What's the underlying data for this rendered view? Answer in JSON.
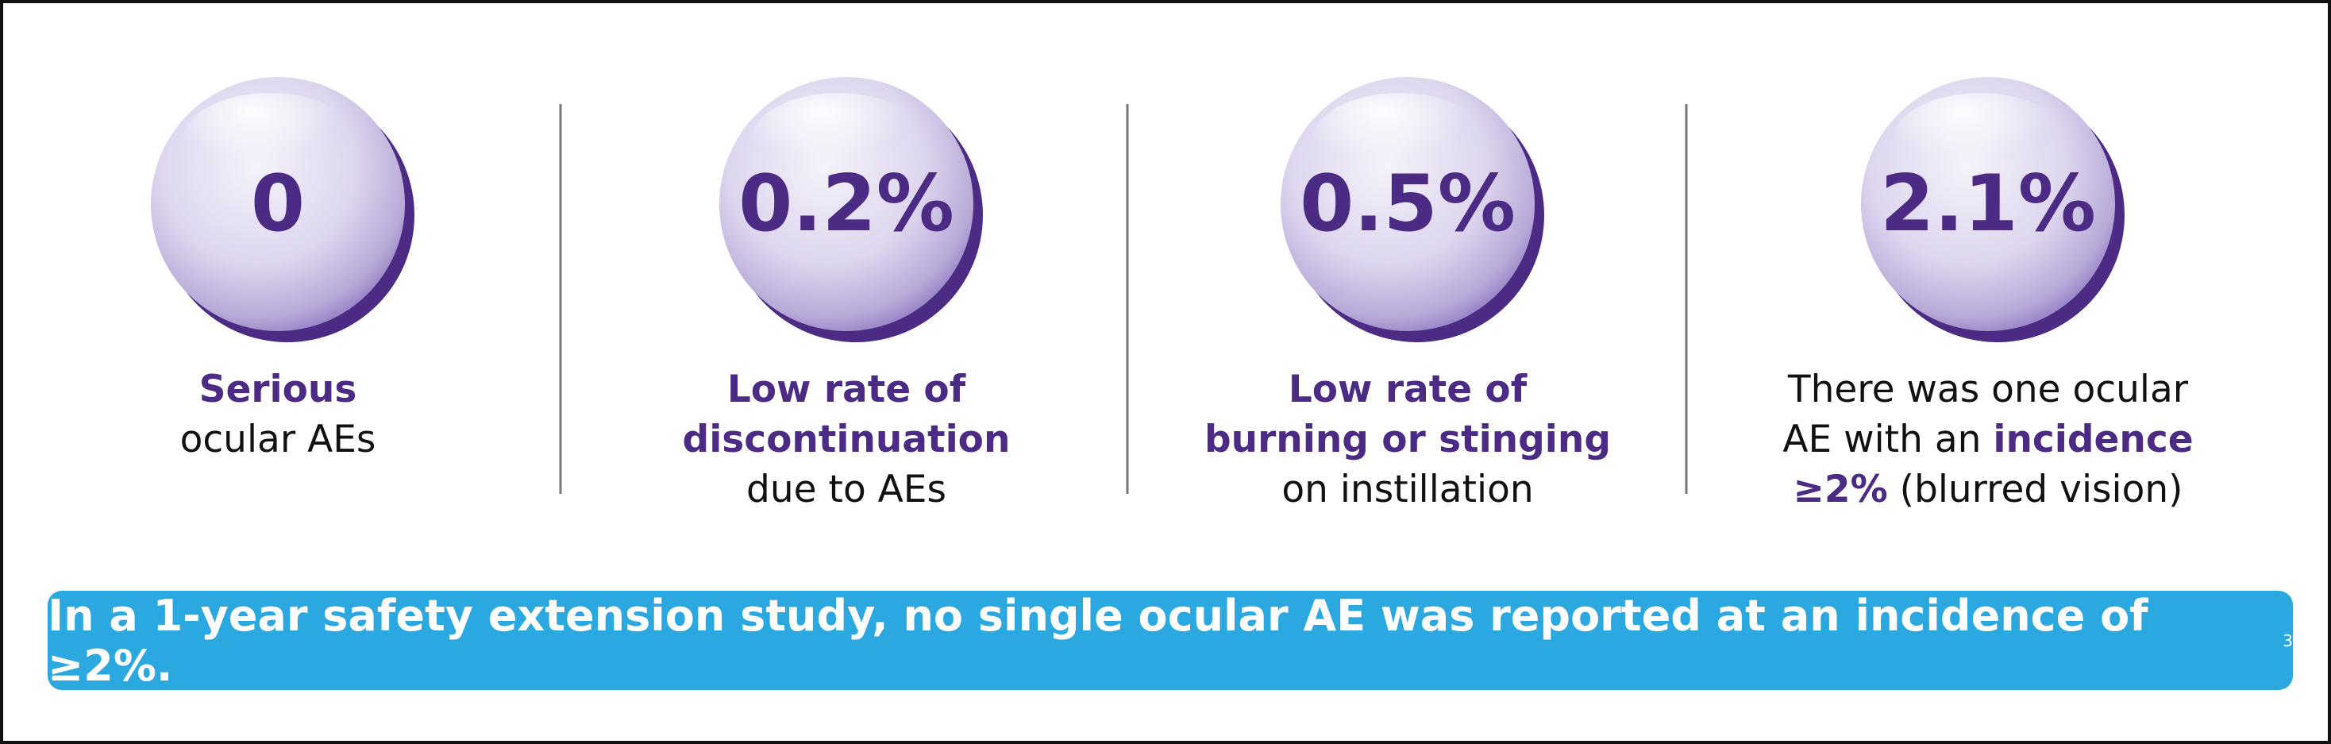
{
  "stats": [
    {
      "value": "0",
      "lines": [
        [
          {
            "text": "Serious",
            "bold": true
          }
        ],
        [
          {
            "text": "ocular AEs",
            "bold": false
          }
        ]
      ]
    },
    {
      "value": "0.2%",
      "lines": [
        [
          {
            "text": "Low rate of",
            "bold": true
          }
        ],
        [
          {
            "text": "discontinuation",
            "bold": true
          }
        ],
        [
          {
            "text": "due to AEs",
            "bold": false
          }
        ]
      ]
    },
    {
      "value": "0.5%",
      "lines": [
        [
          {
            "text": "Low rate of",
            "bold": true
          }
        ],
        [
          {
            "text": "burning or stinging",
            "bold": true
          }
        ],
        [
          {
            "text": "on instillation",
            "bold": false
          }
        ]
      ]
    },
    {
      "value": "2.1%",
      "lines": [
        [
          {
            "text": "There was one ocular",
            "bold": false
          }
        ],
        [
          {
            "text": "AE with an ",
            "bold": false
          },
          {
            "text": "incidence",
            "bold": true
          }
        ],
        [
          {
            "text": "≥2%",
            "bold": true
          },
          {
            "text": " (blurred vision)",
            "bold": false
          }
        ]
      ]
    }
  ],
  "banner": {
    "text": "In a 1-year safety extension study, no single ocular AE was reported at an incidence of ≥2%.",
    "footnote": "3"
  }
}
